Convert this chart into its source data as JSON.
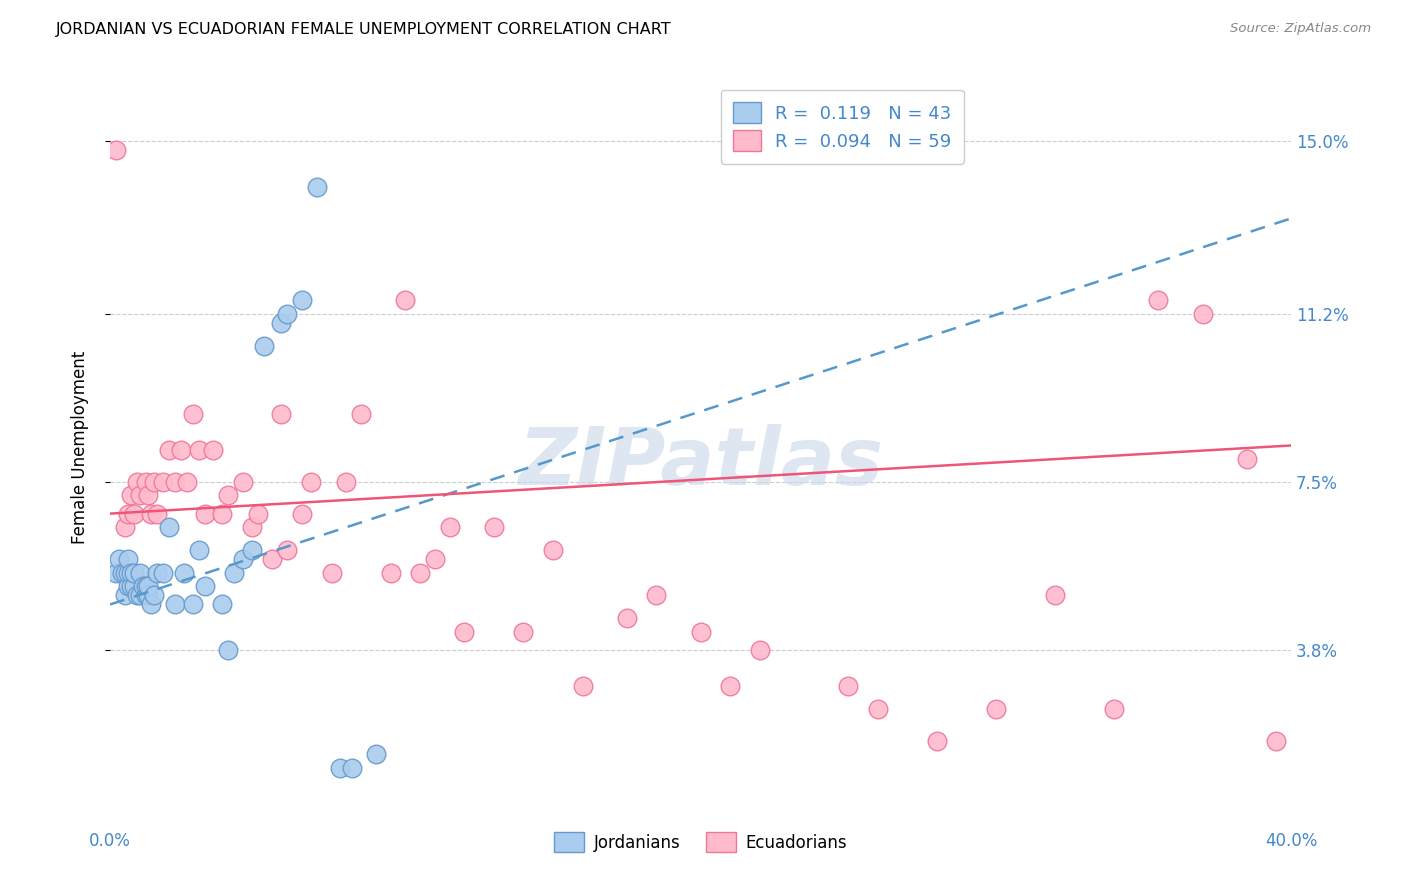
{
  "title": "JORDANIAN VS ECUADORIAN FEMALE UNEMPLOYMENT CORRELATION CHART",
  "source": "Source: ZipAtlas.com",
  "ylabel": "Female Unemployment",
  "xlim": [
    0.0,
    0.4
  ],
  "ylim": [
    0.0,
    0.165
  ],
  "ytick_positions": [
    0.038,
    0.075,
    0.112,
    0.15
  ],
  "ytick_labels": [
    "3.8%",
    "7.5%",
    "11.2%",
    "15.0%"
  ],
  "grid_color": "#cccccc",
  "background_color": "#ffffff",
  "jordanian_color": "#aaccee",
  "ecuadorian_color": "#ffbbcc",
  "jordanian_edge": "#6699cc",
  "ecuadorian_edge": "#ee7799",
  "jordanian_R": 0.119,
  "jordanian_N": 43,
  "ecuadorian_R": 0.094,
  "ecuadorian_N": 59,
  "jordanian_line_start_y": 0.048,
  "jordanian_line_end_y": 0.133,
  "ecuadorian_line_start_y": 0.068,
  "ecuadorian_line_end_y": 0.083,
  "jordanian_x": [
    0.002,
    0.003,
    0.004,
    0.005,
    0.005,
    0.006,
    0.006,
    0.006,
    0.007,
    0.007,
    0.008,
    0.008,
    0.009,
    0.01,
    0.01,
    0.011,
    0.012,
    0.012,
    0.013,
    0.013,
    0.014,
    0.015,
    0.016,
    0.018,
    0.02,
    0.022,
    0.025,
    0.028,
    0.03,
    0.032,
    0.038,
    0.04,
    0.042,
    0.045,
    0.048,
    0.052,
    0.058,
    0.06,
    0.065,
    0.07,
    0.078,
    0.082,
    0.09
  ],
  "jordanian_y": [
    0.055,
    0.058,
    0.055,
    0.05,
    0.055,
    0.052,
    0.055,
    0.058,
    0.052,
    0.055,
    0.052,
    0.055,
    0.05,
    0.05,
    0.055,
    0.052,
    0.05,
    0.052,
    0.05,
    0.052,
    0.048,
    0.05,
    0.055,
    0.055,
    0.065,
    0.048,
    0.055,
    0.048,
    0.06,
    0.052,
    0.048,
    0.038,
    0.055,
    0.058,
    0.06,
    0.105,
    0.11,
    0.112,
    0.115,
    0.14,
    0.012,
    0.012,
    0.015
  ],
  "ecuadorian_x": [
    0.002,
    0.005,
    0.006,
    0.007,
    0.008,
    0.009,
    0.01,
    0.012,
    0.013,
    0.014,
    0.015,
    0.016,
    0.018,
    0.02,
    0.022,
    0.024,
    0.026,
    0.028,
    0.03,
    0.032,
    0.035,
    0.038,
    0.04,
    0.045,
    0.048,
    0.05,
    0.055,
    0.058,
    0.06,
    0.065,
    0.068,
    0.075,
    0.08,
    0.085,
    0.095,
    0.1,
    0.105,
    0.11,
    0.115,
    0.12,
    0.13,
    0.14,
    0.15,
    0.16,
    0.175,
    0.185,
    0.2,
    0.21,
    0.22,
    0.25,
    0.26,
    0.28,
    0.3,
    0.32,
    0.34,
    0.355,
    0.37,
    0.385,
    0.395
  ],
  "ecuadorian_y": [
    0.148,
    0.065,
    0.068,
    0.072,
    0.068,
    0.075,
    0.072,
    0.075,
    0.072,
    0.068,
    0.075,
    0.068,
    0.075,
    0.082,
    0.075,
    0.082,
    0.075,
    0.09,
    0.082,
    0.068,
    0.082,
    0.068,
    0.072,
    0.075,
    0.065,
    0.068,
    0.058,
    0.09,
    0.06,
    0.068,
    0.075,
    0.055,
    0.075,
    0.09,
    0.055,
    0.115,
    0.055,
    0.058,
    0.065,
    0.042,
    0.065,
    0.042,
    0.06,
    0.03,
    0.045,
    0.05,
    0.042,
    0.03,
    0.038,
    0.03,
    0.025,
    0.018,
    0.025,
    0.05,
    0.025,
    0.115,
    0.112,
    0.08,
    0.018
  ],
  "watermark": "ZIPatlas"
}
